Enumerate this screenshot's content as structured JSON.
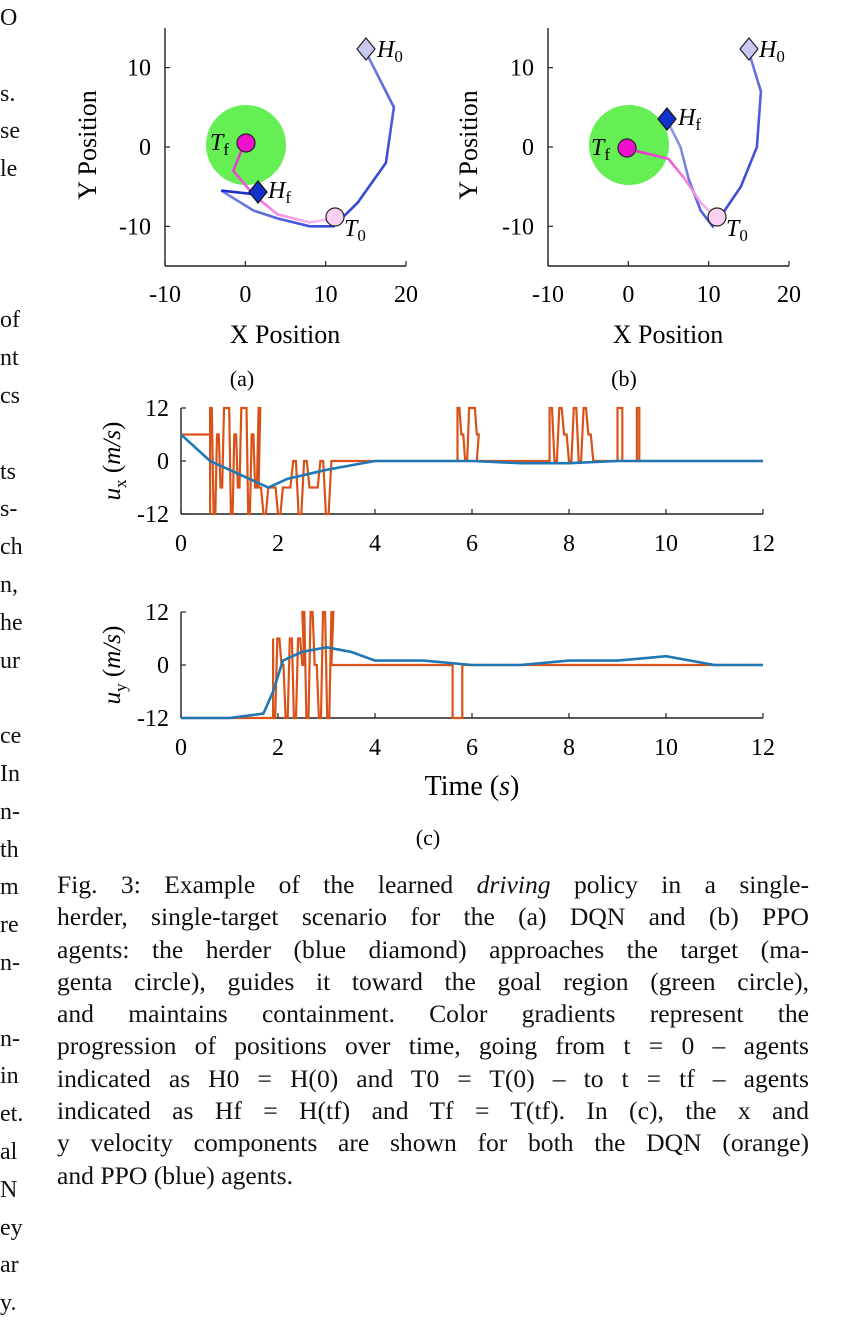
{
  "left_column_fragments": [
    "O",
    "",
    "s.",
    "se",
    "le",
    "",
    "",
    "",
    "of",
    "nt",
    "cs",
    "",
    "ts",
    "s-",
    "ch",
    "n,",
    "he",
    "ur",
    "",
    "ce",
    "In",
    "n-",
    "th",
    "m",
    "re",
    "n-",
    "",
    "n-",
    "in",
    "et.",
    "al",
    "N",
    "ey",
    "ar",
    "y."
  ],
  "panels": {
    "a": {
      "label": "(a)",
      "xlabel": "X Position",
      "ylabel": "Y Position",
      "xticks": [
        "-10",
        "0",
        "10",
        "20"
      ],
      "yticks": [
        "10",
        "0",
        "-10"
      ],
      "H0": "H",
      "H0_sub": "0",
      "Hf": "H",
      "Hf_sub": "f",
      "Tf": "T",
      "Tf_sub": "f",
      "T0": "T",
      "T0_sub": "0"
    },
    "b": {
      "label": "(b)",
      "xlabel": "X Position",
      "ylabel": "Y Position",
      "xticks": [
        "-10",
        "0",
        "10",
        "20"
      ],
      "yticks": [
        "10",
        "0",
        "-10"
      ],
      "H0": "H",
      "H0_sub": "0",
      "Hf": "H",
      "Hf_sub": "f",
      "Tf": "T",
      "Tf_sub": "f",
      "T0": "T",
      "T0_sub": "0"
    },
    "c": {
      "label": "(c)",
      "xlabel": "Time (s)",
      "ux_label": "u_x (m/s)",
      "uy_label": "u_y (m/s)",
      "xticks": [
        "0",
        "2",
        "4",
        "6",
        "8",
        "10",
        "12"
      ],
      "yticks": [
        "12",
        "0",
        "-12"
      ]
    }
  },
  "colors": {
    "goal": "#66ee55",
    "target": "#ee22cc",
    "herder": "#1a2fcc",
    "dqn": "#d95319",
    "ppo": "#1f77b4"
  },
  "chart_data": [
    {
      "type": "line",
      "panel": "a",
      "xlabel": "X Position",
      "ylabel": "Y Position",
      "xlim": [
        -10,
        20
      ],
      "ylim": [
        -15,
        15
      ],
      "series": [
        {
          "x": [
            15,
            16.5,
            18.5,
            17.5,
            14,
            11,
            8,
            4,
            1,
            -3
          ],
          "y": [
            12,
            9,
            5,
            -2,
            -7,
            -10,
            -10,
            -9,
            -8,
            -5.5
          ]
        },
        {
          "x": [
            11,
            8,
            4,
            1,
            -1.5,
            -0.5,
            0
          ],
          "y": [
            -9,
            -9.5,
            -8.5,
            -6,
            -3,
            -0.5,
            0.5
          ]
        },
        {
          "x": [
            -3,
            1.5
          ],
          "y": [
            -5.5,
            -6
          ]
        }
      ],
      "goal": {
        "x": 0,
        "y": 0,
        "r": 5
      }
    },
    {
      "type": "line",
      "panel": "b",
      "xlabel": "X Position",
      "ylabel": "Y Position",
      "xlim": [
        -10,
        20
      ],
      "ylim": [
        -15,
        15
      ],
      "series": [
        {
          "x": [
            15,
            16.5,
            16,
            14,
            12,
            10.5,
            9,
            7.5,
            6.5,
            5
          ],
          "y": [
            12,
            7,
            0,
            -5,
            -8,
            -10,
            -8,
            -4,
            0,
            3
          ]
        },
        {
          "x": [
            11,
            9,
            7,
            5,
            3,
            1,
            0
          ],
          "y": [
            -9,
            -7,
            -4,
            -1.5,
            -1,
            -0.5,
            0
          ]
        }
      ],
      "goal": {
        "x": 0,
        "y": 0,
        "r": 5
      }
    },
    {
      "type": "line",
      "panel": "c-ux",
      "xlabel": "Time (s)",
      "xlim": [
        0,
        12
      ],
      "ylim": [
        -12,
        12
      ],
      "series": [
        {
          "x": [
            0,
            0.3,
            0.6,
            1.0,
            1.4,
            1.8,
            2.2,
            2.6,
            3.0,
            3.5,
            4,
            5,
            6,
            7,
            8,
            9,
            10,
            11,
            12
          ],
          "y": [
            6,
            3,
            0,
            -2,
            -4,
            -6,
            -4,
            -3,
            -2,
            -1,
            0,
            0,
            0,
            -0.5,
            -0.5,
            0,
            0,
            0,
            0
          ]
        }
      ]
    },
    {
      "type": "line",
      "panel": "c-uy",
      "xlabel": "Time (s)",
      "xlim": [
        0,
        12
      ],
      "ylim": [
        -12,
        12
      ],
      "series": [
        {
          "x": [
            0,
            1,
            1.7,
            1.9,
            2.1,
            2.5,
            3,
            3.5,
            4,
            5,
            6,
            7,
            8,
            9,
            10,
            11,
            12
          ],
          "y": [
            -12,
            -12,
            -11,
            -6,
            1,
            3,
            4,
            3,
            1,
            1,
            0,
            0,
            1,
            1,
            2,
            0,
            0
          ]
        }
      ]
    }
  ],
  "caption": {
    "lines": [
      "Fig. 3: Example of the learned {driving} policy in a single-",
      "herder, single-target scenario for the (a) DQN and (b) PPO",
      "agents: the herder (blue diamond) approaches the target (ma-",
      "genta circle), guides it toward the goal region (green circle),",
      "and maintains containment. Color gradients represent the",
      "progression of positions over time, going from t = 0 – agents",
      "indicated as H0 = H(0) and T0 = T(0) – to t = tf – agents",
      "indicated as Hf = H(tf) and Tf = T(tf). In (c), the x and",
      "y velocity components are shown for both the DQN (orange)",
      "and PPO (blue) agents."
    ]
  }
}
